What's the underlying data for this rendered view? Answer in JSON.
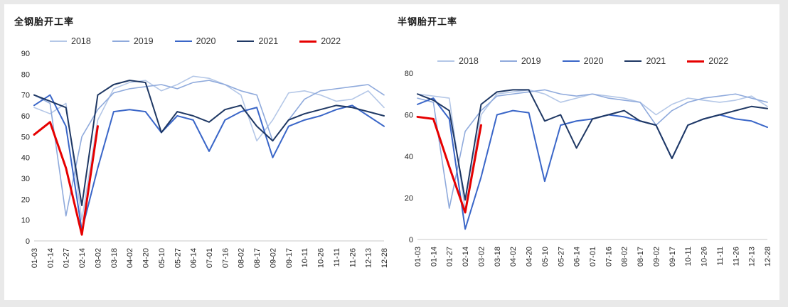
{
  "chart_data": [
    {
      "type": "line",
      "title": "全钢胎开工率",
      "legend_position": "top",
      "grid": false,
      "x": [
        "01-03",
        "01-14",
        "01-27",
        "02-14",
        "03-02",
        "03-18",
        "04-02",
        "04-20",
        "05-10",
        "05-27",
        "06-14",
        "07-01",
        "07-16",
        "08-02",
        "08-17",
        "09-02",
        "09-17",
        "10-11",
        "10-26",
        "11-11",
        "11-26",
        "12-13",
        "12-28"
      ],
      "ylim": [
        0,
        90
      ],
      "yticks": [
        0,
        10,
        20,
        30,
        40,
        50,
        60,
        70,
        80,
        90
      ],
      "series": [
        {
          "name": "2018",
          "color": "#b4c7e7",
          "width": 1.6,
          "values": [
            64,
            61,
            66,
            10,
            58,
            73,
            76,
            77,
            72,
            75,
            79,
            78,
            75,
            70,
            48,
            58,
            71,
            72,
            70,
            67,
            68,
            72,
            64
          ]
        },
        {
          "name": "2019",
          "color": "#8faadc",
          "width": 1.6,
          "values": [
            70,
            66,
            12,
            50,
            63,
            71,
            73,
            74,
            75,
            73,
            76,
            77,
            75,
            72,
            70,
            48,
            58,
            68,
            72,
            73,
            74,
            75,
            70
          ]
        },
        {
          "name": "2020",
          "color": "#3a66c8",
          "width": 2,
          "values": [
            65,
            70,
            55,
            5,
            35,
            62,
            63,
            62,
            52,
            60,
            58,
            43,
            58,
            62,
            64,
            40,
            55,
            58,
            60,
            63,
            65,
            60,
            55
          ]
        },
        {
          "name": "2021",
          "color": "#1f3864",
          "width": 2,
          "values": [
            70,
            67,
            64,
            17,
            70,
            75,
            77,
            76,
            52,
            62,
            60,
            57,
            63,
            65,
            55,
            48,
            58,
            61,
            63,
            65,
            64,
            62,
            60
          ]
        },
        {
          "name": "2022",
          "color": "#e60000",
          "width": 3,
          "values": [
            51,
            57,
            35,
            3,
            55,
            null,
            null,
            null,
            null,
            null,
            null,
            null,
            null,
            null,
            null,
            null,
            null,
            null,
            null,
            null,
            null,
            null,
            null
          ]
        }
      ]
    },
    {
      "type": "line",
      "title": "半钢胎开工率",
      "legend_position": "top",
      "grid": false,
      "x": [
        "01-03",
        "01-14",
        "01-27",
        "02-14",
        "03-02",
        "03-18",
        "04-02",
        "04-20",
        "05-10",
        "05-27",
        "06-14",
        "07-01",
        "07-16",
        "08-02",
        "08-17",
        "09-02",
        "09-17",
        "10-11",
        "10-26",
        "11-11",
        "11-26",
        "12-13",
        "12-28"
      ],
      "ylim": [
        0,
        80
      ],
      "yticks": [
        0,
        20,
        40,
        60,
        80
      ],
      "series": [
        {
          "name": "2018",
          "color": "#b4c7e7",
          "width": 1.6,
          "values": [
            70,
            69,
            68,
            14,
            60,
            70,
            71,
            72,
            70,
            66,
            68,
            70,
            69,
            68,
            66,
            60,
            65,
            68,
            67,
            66,
            67,
            69,
            64
          ]
        },
        {
          "name": "2019",
          "color": "#8faadc",
          "width": 1.6,
          "values": [
            68,
            66,
            15,
            52,
            62,
            69,
            70,
            71,
            72,
            70,
            69,
            70,
            68,
            67,
            66,
            55,
            62,
            66,
            68,
            69,
            70,
            68,
            66
          ]
        },
        {
          "name": "2020",
          "color": "#3a66c8",
          "width": 2,
          "values": [
            65,
            68,
            58,
            5,
            30,
            60,
            62,
            61,
            28,
            55,
            57,
            58,
            60,
            59,
            57,
            55,
            39,
            55,
            58,
            60,
            58,
            57,
            54
          ]
        },
        {
          "name": "2021",
          "color": "#1f3864",
          "width": 2,
          "values": [
            70,
            67,
            62,
            19,
            65,
            71,
            72,
            72,
            57,
            60,
            44,
            58,
            60,
            62,
            57,
            55,
            39,
            55,
            58,
            60,
            62,
            64,
            63
          ]
        },
        {
          "name": "2022",
          "color": "#e60000",
          "width": 3,
          "values": [
            59,
            58,
            35,
            13,
            55,
            null,
            null,
            null,
            null,
            null,
            null,
            null,
            null,
            null,
            null,
            null,
            null,
            null,
            null,
            null,
            null,
            null,
            null
          ]
        }
      ]
    }
  ]
}
